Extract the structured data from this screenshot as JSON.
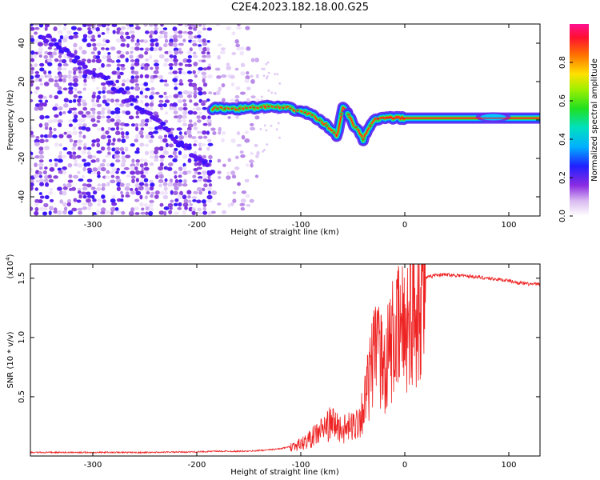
{
  "title": "C2E4.2023.182.18.00.G25",
  "chart_data": [
    {
      "type": "heatmap",
      "xlabel": "Height of straight line (km)",
      "ylabel": "Frequency (Hz)",
      "xlim": [
        -360,
        130
      ],
      "ylim": [
        -50,
        50
      ],
      "x_ticks": [
        -300,
        -200,
        -100,
        0,
        100
      ],
      "x_tick_labels": [
        "-300",
        "-200",
        "-100",
        "0",
        "100"
      ],
      "y_ticks": [
        -40,
        -20,
        0,
        20,
        40
      ],
      "y_tick_labels": [
        "-40",
        "-20",
        "0",
        "20",
        "40"
      ],
      "colorbar": {
        "label": "Normalized spectral amplitude",
        "range": [
          0,
          1
        ],
        "ticks": [
          0.0,
          0.2,
          0.4,
          0.6,
          0.8
        ],
        "tick_labels": [
          "0.0",
          "0.2",
          "0.4",
          "0.6",
          "0.8"
        ]
      },
      "features": {
        "noise_region_x": [
          -360,
          -140
        ],
        "diagonal_trace": {
          "x": [
            -350,
            -300,
            -250,
            -200,
            -185
          ],
          "y": [
            45,
            25,
            5,
            -20,
            -28
          ]
        },
        "carrier_trace": {
          "x": [
            -185,
            -160,
            -130,
            -110,
            -90,
            -75,
            -65,
            -60,
            -55,
            -50,
            -45,
            -40,
            -30,
            -20,
            0,
            50,
            100,
            130
          ],
          "y": [
            6,
            6,
            7,
            6,
            3,
            -3,
            -8,
            6,
            4,
            -2,
            -5,
            -10,
            0,
            1,
            1,
            1,
            1,
            1
          ]
        }
      }
    },
    {
      "type": "line",
      "xlabel": "Height of straight line (km)",
      "ylabel": "SNR (10 * v/v)",
      "y_multiplier": "(x10",
      "y_multiplier_exp": "4",
      "y_multiplier_close": ")",
      "xlim": [
        -360,
        130
      ],
      "ylim": [
        0,
        1.62
      ],
      "x_ticks": [
        -300,
        -200,
        -100,
        0,
        100
      ],
      "x_tick_labels": [
        "-300",
        "-200",
        "-100",
        "0",
        "100"
      ],
      "y_ticks": [
        0.5,
        1.0,
        1.5
      ],
      "y_tick_labels": [
        "0.5",
        "1.0",
        "1.5"
      ],
      "color": "#ee2222",
      "series": [
        {
          "x": [
            -360,
            -300,
            -250,
            -200,
            -180,
            -150,
            -120,
            -110,
            -100,
            -90,
            -80,
            -70,
            -60,
            -50,
            -45,
            -40,
            -35,
            -30,
            -25,
            -20,
            -15,
            -10,
            -5,
            0,
            5,
            10,
            15,
            20,
            30,
            40,
            60,
            80,
            100,
            110,
            120,
            130
          ],
          "y": [
            0.03,
            0.03,
            0.03,
            0.035,
            0.04,
            0.04,
            0.06,
            0.08,
            0.1,
            0.15,
            0.22,
            0.28,
            0.22,
            0.25,
            0.3,
            0.4,
            0.6,
            0.8,
            0.85,
            0.75,
            0.9,
            1.0,
            1.05,
            1.1,
            1.2,
            1.25,
            1.4,
            1.5,
            1.53,
            1.53,
            1.52,
            1.5,
            1.48,
            1.46,
            1.45,
            1.45
          ]
        }
      ]
    }
  ]
}
